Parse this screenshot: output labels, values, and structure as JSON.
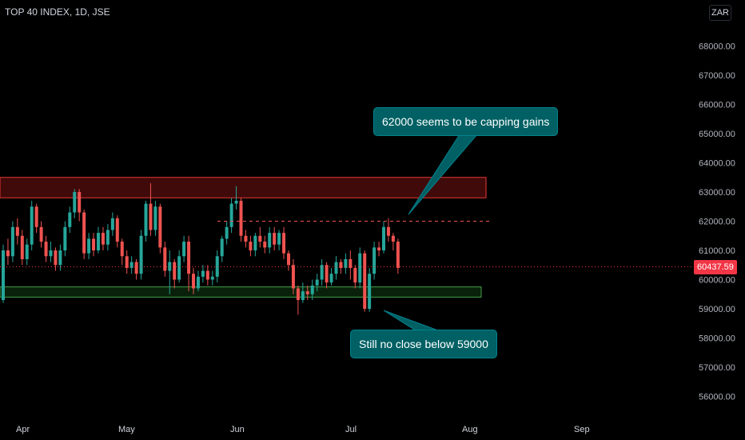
{
  "header": {
    "title": "TOP 40 INDEX, 1D, JSE",
    "currency": "ZAR"
  },
  "colors": {
    "up": "#26a69a",
    "down": "#ef5350",
    "resistance": "#b71c1c",
    "support": "#1b5e20",
    "annotation": "#006064",
    "last_price": "#f23645"
  },
  "annotations": {
    "top": "62000 seems to be capping gains",
    "bottom": "Still no close below 59000"
  },
  "last_price_label": "60437.59",
  "chart_data": {
    "type": "candlestick",
    "title": "TOP 40 INDEX, 1D, JSE",
    "x_ticks": [
      "Apr",
      "May",
      "Jun",
      "Jul",
      "Aug",
      "Sep"
    ],
    "y_ticks": [
      56000,
      57000,
      58000,
      59000,
      60000,
      61000,
      62000,
      63000,
      64000,
      65000,
      66000,
      67000,
      68000
    ],
    "y_tick_labels": [
      "56000.00",
      "57000.00",
      "58000.00",
      "59000.00",
      "60000.00",
      "61000.00",
      "62000.00",
      "63000.00",
      "64000.00",
      "65000.00",
      "66000.00",
      "67000.00",
      "68000.00"
    ],
    "ylim": [
      55500,
      69500
    ],
    "last_price": 60437.59,
    "resistance_zone": [
      62800,
      63500
    ],
    "support_zone": [
      59400,
      59750
    ],
    "reference_line": 62000,
    "candles": [
      [
        59300,
        61000,
        59200,
        61200
      ],
      [
        61000,
        60800,
        60500,
        61400
      ],
      [
        60800,
        61800,
        60600,
        62000
      ],
      [
        61800,
        61500,
        61200,
        62100
      ],
      [
        61500,
        60700,
        60500,
        61700
      ],
      [
        60700,
        61200,
        60500,
        61400
      ],
      [
        61200,
        62500,
        61000,
        62700
      ],
      [
        62500,
        61800,
        61600,
        62600
      ],
      [
        61800,
        61300,
        61100,
        62000
      ],
      [
        61300,
        60800,
        60600,
        61500
      ],
      [
        60800,
        61000,
        60600,
        61300
      ],
      [
        61000,
        60500,
        60300,
        61100
      ],
      [
        60500,
        61000,
        60300,
        61200
      ],
      [
        61000,
        61800,
        60800,
        62000
      ],
      [
        61800,
        62300,
        61600,
        62500
      ],
      [
        62300,
        63000,
        62100,
        63100
      ],
      [
        63000,
        62300,
        62000,
        63100
      ],
      [
        62300,
        60900,
        60700,
        62400
      ],
      [
        60900,
        61400,
        60700,
        61600
      ],
      [
        61400,
        61000,
        60800,
        61600
      ],
      [
        61000,
        61600,
        60900,
        61800
      ],
      [
        61600,
        61200,
        61000,
        61800
      ],
      [
        61200,
        61700,
        61000,
        61900
      ],
      [
        61700,
        62100,
        61500,
        62300
      ],
      [
        62100,
        61300,
        61100,
        62200
      ],
      [
        61300,
        60800,
        60500,
        61400
      ],
      [
        60800,
        60400,
        60200,
        61000
      ],
      [
        60400,
        60600,
        60200,
        60800
      ],
      [
        60600,
        60200,
        60000,
        60700
      ],
      [
        60200,
        61500,
        60000,
        61700
      ],
      [
        61500,
        62600,
        61300,
        62700
      ],
      [
        62600,
        61700,
        61500,
        63300
      ],
      [
        61700,
        62500,
        61500,
        62700
      ],
      [
        62500,
        61100,
        60900,
        62600
      ],
      [
        61100,
        60300,
        60100,
        61300
      ],
      [
        60300,
        60600,
        59500,
        61000
      ],
      [
        60600,
        60000,
        59700,
        60700
      ],
      [
        60000,
        60800,
        59900,
        61000
      ],
      [
        60800,
        61300,
        60600,
        61500
      ],
      [
        61300,
        60200,
        59600,
        61500
      ],
      [
        60200,
        59700,
        59500,
        60400
      ],
      [
        59700,
        60100,
        59600,
        60300
      ],
      [
        60100,
        60300,
        59900,
        60500
      ],
      [
        60300,
        60000,
        59800,
        60500
      ],
      [
        60000,
        60100,
        59800,
        60300
      ],
      [
        60100,
        60800,
        59900,
        61000
      ],
      [
        60800,
        61400,
        60600,
        61500
      ],
      [
        61400,
        61800,
        61200,
        62000
      ],
      [
        61800,
        62600,
        61600,
        62800
      ],
      [
        62600,
        62700,
        62400,
        63200
      ],
      [
        62700,
        61500,
        61300,
        62800
      ],
      [
        61500,
        61300,
        61100,
        61700
      ],
      [
        61300,
        61000,
        60800,
        61500
      ],
      [
        61000,
        61500,
        60800,
        61600
      ],
      [
        61500,
        61300,
        61100,
        61800
      ],
      [
        61300,
        61100,
        60900,
        61500
      ],
      [
        61100,
        61600,
        60900,
        61800
      ],
      [
        61600,
        61200,
        61000,
        61800
      ],
      [
        61200,
        61600,
        61000,
        61700
      ],
      [
        61600,
        60900,
        60700,
        61800
      ],
      [
        60900,
        60500,
        60300,
        61000
      ],
      [
        60500,
        59700,
        59500,
        60700
      ],
      [
        59700,
        59300,
        58800,
        59800
      ],
      [
        59300,
        59600,
        59200,
        59900
      ],
      [
        59600,
        59500,
        59300,
        59800
      ],
      [
        59500,
        59800,
        59300,
        60000
      ],
      [
        59800,
        60000,
        59600,
        60200
      ],
      [
        60000,
        60500,
        59800,
        60700
      ],
      [
        60500,
        59900,
        59700,
        60600
      ],
      [
        59900,
        60200,
        59800,
        60400
      ],
      [
        60200,
        60600,
        60000,
        60800
      ],
      [
        60600,
        60400,
        60200,
        60700
      ],
      [
        60400,
        60700,
        60200,
        60900
      ],
      [
        60700,
        60400,
        60000,
        61000
      ],
      [
        60400,
        59900,
        59700,
        60500
      ],
      [
        59900,
        60900,
        59700,
        61100
      ],
      [
        60900,
        59000,
        58900,
        61000
      ],
      [
        59000,
        60200,
        58900,
        60400
      ],
      [
        60200,
        61100,
        60000,
        61300
      ],
      [
        61100,
        61000,
        60800,
        61300
      ],
      [
        61000,
        61800,
        60900,
        62000
      ],
      [
        61800,
        61500,
        61300,
        62100
      ],
      [
        61500,
        61300,
        61000,
        61600
      ],
      [
        61300,
        60400,
        60200,
        61400
      ]
    ]
  }
}
